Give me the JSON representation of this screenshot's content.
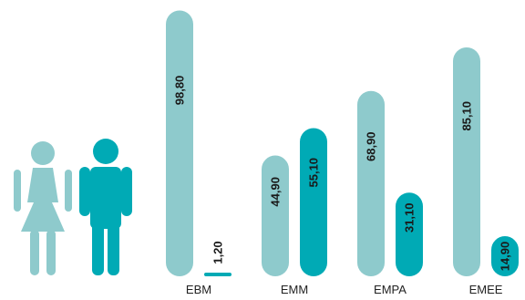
{
  "chart_data": {
    "type": "bar",
    "categories": [
      "EBM",
      "EMM",
      "EMPA",
      "EMEE"
    ],
    "series": [
      {
        "values": [
          98.8,
          44.9,
          68.9,
          85.1
        ],
        "color": "#8ecacc",
        "icon": "female-person-icon"
      },
      {
        "values": [
          1.2,
          55.1,
          31.1,
          14.9
        ],
        "color": "#00aab5",
        "icon": "male-person-icon"
      }
    ],
    "value_labels": [
      [
        "98,80",
        "44,90",
        "68,90",
        "85,10"
      ],
      [
        "1,20",
        "55,10",
        "31,10",
        "14,90"
      ]
    ],
    "ylim": [
      0,
      100
    ],
    "grid": false,
    "legend": "left-icons"
  }
}
